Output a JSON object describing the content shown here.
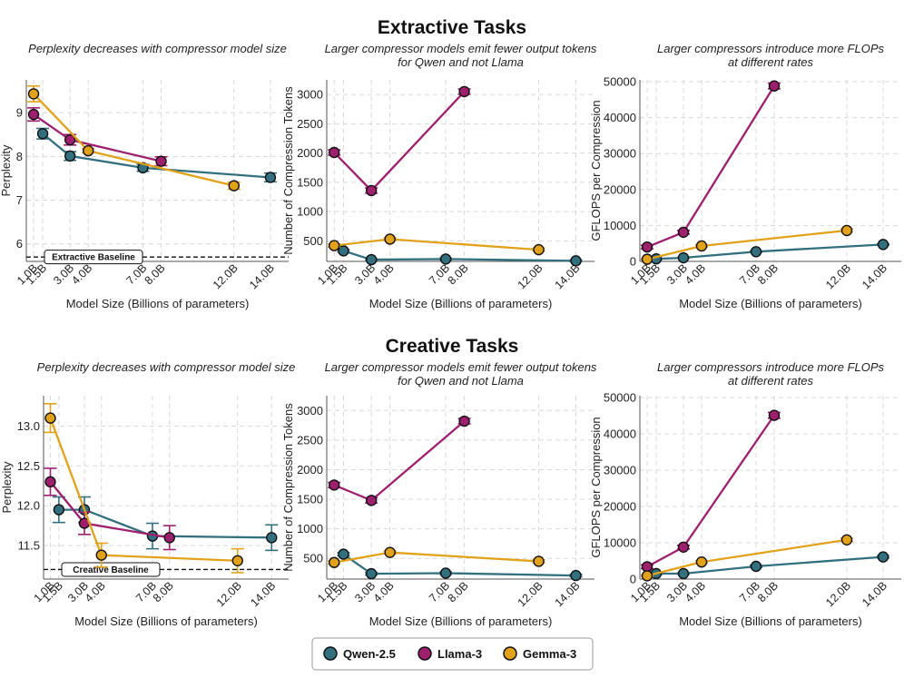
{
  "figure": {
    "sections": [
      {
        "title": "Extractive Tasks"
      },
      {
        "title": "Creative Tasks"
      }
    ],
    "legend": [
      {
        "name": "Qwen-2.5",
        "color": "#33707f"
      },
      {
        "name": "Llama-3",
        "color": "#9e1f6e"
      },
      {
        "name": "Gemma-3",
        "color": "#e1a21a"
      }
    ]
  },
  "chart_data": [
    {
      "type": "line",
      "section": "Extractive Tasks",
      "title": "Perplexity decreases with compressor model size",
      "xlabel": "Model Size (Billions of parameters)",
      "ylabel": "Perplexity",
      "xlim": [
        0.6,
        15.0
      ],
      "ylim": [
        5.6,
        9.75
      ],
      "xticks": [
        1.0,
        1.5,
        3.0,
        4.0,
        7.0,
        8.0,
        12.0,
        14.0
      ],
      "xtick_labels": [
        "1.0B",
        "1.5B",
        "3.0B",
        "4.0B",
        "7.0B",
        "8.0B",
        "12.0B",
        "14.0B"
      ],
      "yticks": [
        6,
        7,
        8,
        9
      ],
      "ytick_labels": [
        "6",
        "7",
        "8",
        "9"
      ],
      "baseline": {
        "label": "Extractive Baseline",
        "value": 5.7
      },
      "series": [
        {
          "name": "Qwen-2.5",
          "color": "#33707f",
          "x": [
            1.5,
            3.0,
            7.0,
            14.0
          ],
          "y": [
            8.52,
            8.01,
            7.74,
            7.52
          ],
          "err": [
            0.12,
            0.1,
            0.08,
            0.1
          ]
        },
        {
          "name": "Llama-3",
          "color": "#9e1f6e",
          "x": [
            1.0,
            3.0,
            8.0
          ],
          "y": [
            8.96,
            8.38,
            7.89
          ],
          "err": [
            0.15,
            0.12,
            0.1
          ]
        },
        {
          "name": "Gemma-3",
          "color": "#e1a21a",
          "x": [
            1.0,
            4.0,
            12.0
          ],
          "y": [
            9.43,
            8.13,
            7.33
          ],
          "err": [
            0.18,
            0.05,
            0.08
          ]
        }
      ]
    },
    {
      "type": "line",
      "section": "Extractive Tasks",
      "title": "Larger compressor models emit fewer output tokens for Qwen and not Llama",
      "title_lines": [
        "Larger compressor models emit fewer output tokens",
        "for Qwen and not Llama"
      ],
      "xlabel": "Model Size (Billions of parameters)",
      "ylabel": "Number of Compression Tokens",
      "xlim": [
        0.6,
        15.0
      ],
      "ylim": [
        150,
        3250
      ],
      "xticks": [
        1.0,
        1.5,
        3.0,
        4.0,
        7.0,
        8.0,
        12.0,
        14.0
      ],
      "xtick_labels": [
        "1.0B",
        "1.5B",
        "3.0B",
        "4.0B",
        "7.0B",
        "8.0B",
        "12.0B",
        "14.0B"
      ],
      "yticks": [
        500,
        1000,
        1500,
        2000,
        2500,
        3000
      ],
      "ytick_labels": [
        "500",
        "1000",
        "1500",
        "2000",
        "2500",
        "3000"
      ],
      "series": [
        {
          "name": "Qwen-2.5",
          "color": "#33707f",
          "x": [
            1.5,
            3.0,
            7.0,
            14.0
          ],
          "y": [
            330,
            180,
            190,
            160
          ],
          "err": [
            20,
            15,
            15,
            15
          ]
        },
        {
          "name": "Llama-3",
          "color": "#9e1f6e",
          "x": [
            1.0,
            3.0,
            8.0
          ],
          "y": [
            2010,
            1360,
            3050
          ],
          "err": [
            45,
            45,
            45
          ]
        },
        {
          "name": "Gemma-3",
          "color": "#e1a21a",
          "x": [
            1.0,
            4.0,
            12.0
          ],
          "y": [
            420,
            530,
            350
          ],
          "err": [
            25,
            25,
            25
          ]
        }
      ]
    },
    {
      "type": "line",
      "section": "Extractive Tasks",
      "title": "Larger compressors introduce more FLOPs at different rates",
      "title_lines": [
        "Larger compressors introduce more FLOPs",
        "at different rates"
      ],
      "xlabel": "Model Size (Billions of parameters)",
      "ylabel": "GFLOPS per Compression",
      "xlim": [
        0.6,
        15.0
      ],
      "ylim": [
        0,
        50500
      ],
      "xticks": [
        1.0,
        1.5,
        3.0,
        4.0,
        7.0,
        8.0,
        12.0,
        14.0
      ],
      "xtick_labels": [
        "1.0B",
        "1.5B",
        "3.0B",
        "4.0B",
        "7.0B",
        "8.0B",
        "12.0B",
        "14.0B"
      ],
      "yticks": [
        0,
        10000,
        20000,
        30000,
        40000,
        50000
      ],
      "ytick_labels": [
        "0",
        "10000",
        "20000",
        "30000",
        "40000",
        "50000"
      ],
      "series": [
        {
          "name": "Qwen-2.5",
          "color": "#33707f",
          "x": [
            1.5,
            3.0,
            7.0,
            14.0
          ],
          "y": [
            700,
            1000,
            2700,
            4700
          ],
          "err": [
            150,
            150,
            200,
            200
          ]
        },
        {
          "name": "Llama-3",
          "color": "#9e1f6e",
          "x": [
            1.0,
            3.0,
            8.0
          ],
          "y": [
            4000,
            8100,
            48800
          ],
          "err": [
            500,
            500,
            800
          ]
        },
        {
          "name": "Gemma-3",
          "color": "#e1a21a",
          "x": [
            1.0,
            4.0,
            12.0
          ],
          "y": [
            600,
            4300,
            8600
          ],
          "err": [
            150,
            300,
            400
          ]
        }
      ]
    },
    {
      "type": "line",
      "section": "Creative Tasks",
      "title": "Perplexity decreases with compressor model size",
      "xlabel": "Model Size (Billions of parameters)",
      "ylabel": "Perplexity",
      "xlim": [
        0.6,
        15.0
      ],
      "ylim": [
        11.08,
        13.38
      ],
      "xticks": [
        1.0,
        1.5,
        3.0,
        4.0,
        7.0,
        8.0,
        12.0,
        14.0
      ],
      "xtick_labels": [
        "1.0B",
        "1.5B",
        "3.0B",
        "4.0B",
        "7.0B",
        "8.0B",
        "12.0B",
        "14.0B"
      ],
      "yticks": [
        11.5,
        12.0,
        12.5,
        13.0
      ],
      "ytick_labels": [
        "11.5",
        "12.0",
        "12.5",
        "13.0"
      ],
      "baseline": {
        "label": "Creative Baseline",
        "value": 11.2
      },
      "series": [
        {
          "name": "Qwen-2.5",
          "color": "#33707f",
          "x": [
            1.5,
            3.0,
            7.0,
            14.0
          ],
          "y": [
            11.95,
            11.95,
            11.62,
            11.6
          ],
          "err": [
            0.16,
            0.16,
            0.16,
            0.16
          ]
        },
        {
          "name": "Llama-3",
          "color": "#9e1f6e",
          "x": [
            1.0,
            3.0,
            8.0
          ],
          "y": [
            12.3,
            11.78,
            11.6
          ],
          "err": [
            0.17,
            0.14,
            0.15
          ]
        },
        {
          "name": "Gemma-3",
          "color": "#e1a21a",
          "x": [
            1.0,
            4.0,
            12.0
          ],
          "y": [
            13.1,
            11.38,
            11.31
          ],
          "err": [
            0.18,
            0.15,
            0.15
          ]
        }
      ]
    },
    {
      "type": "line",
      "section": "Creative Tasks",
      "title": "Larger compressor models emit fewer output tokens for Qwen and not Llama",
      "title_lines": [
        "Larger compressor models emit fewer output tokens",
        "for Qwen and not Llama"
      ],
      "xlabel": "Model Size (Billions of parameters)",
      "ylabel": "Number of Compression Tokens",
      "xlim": [
        0.6,
        15.0
      ],
      "ylim": [
        150,
        3250
      ],
      "xticks": [
        1.0,
        1.5,
        3.0,
        4.0,
        7.0,
        8.0,
        12.0,
        14.0
      ],
      "xtick_labels": [
        "1.0B",
        "1.5B",
        "3.0B",
        "4.0B",
        "7.0B",
        "8.0B",
        "12.0B",
        "14.0B"
      ],
      "yticks": [
        500,
        1000,
        1500,
        2000,
        2500,
        3000
      ],
      "ytick_labels": [
        "500",
        "1000",
        "1500",
        "2000",
        "2500",
        "3000"
      ],
      "series": [
        {
          "name": "Qwen-2.5",
          "color": "#33707f",
          "x": [
            1.5,
            3.0,
            7.0,
            14.0
          ],
          "y": [
            570,
            240,
            250,
            210
          ],
          "err": [
            25,
            20,
            20,
            20
          ]
        },
        {
          "name": "Llama-3",
          "color": "#9e1f6e",
          "x": [
            1.0,
            3.0,
            8.0
          ],
          "y": [
            1740,
            1480,
            2820
          ],
          "err": [
            45,
            45,
            45
          ]
        },
        {
          "name": "Gemma-3",
          "color": "#e1a21a",
          "x": [
            1.0,
            4.0,
            12.0
          ],
          "y": [
            430,
            600,
            450
          ],
          "err": [
            25,
            25,
            25
          ]
        }
      ]
    },
    {
      "type": "line",
      "section": "Creative Tasks",
      "title": "Larger compressors introduce more FLOPs at different rates",
      "title_lines": [
        "Larger compressors introduce more FLOPs",
        "at different rates"
      ],
      "xlabel": "Model Size (Billions of parameters)",
      "ylabel": "GFLOPS per Compression",
      "xlim": [
        0.6,
        15.0
      ],
      "ylim": [
        0,
        50500
      ],
      "xticks": [
        1.0,
        1.5,
        3.0,
        4.0,
        7.0,
        8.0,
        12.0,
        14.0
      ],
      "xtick_labels": [
        "1.0B",
        "1.5B",
        "3.0B",
        "4.0B",
        "7.0B",
        "8.0B",
        "12.0B",
        "14.0B"
      ],
      "yticks": [
        0,
        10000,
        20000,
        30000,
        40000,
        50000
      ],
      "ytick_labels": [
        "0",
        "10000",
        "20000",
        "30000",
        "40000",
        "50000"
      ],
      "series": [
        {
          "name": "Qwen-2.5",
          "color": "#33707f",
          "x": [
            1.5,
            3.0,
            7.0,
            14.0
          ],
          "y": [
            1500,
            1500,
            3500,
            6100
          ],
          "err": [
            200,
            200,
            300,
            300
          ]
        },
        {
          "name": "Llama-3",
          "color": "#9e1f6e",
          "x": [
            1.0,
            3.0,
            8.0
          ],
          "y": [
            3400,
            8800,
            45100
          ],
          "err": [
            500,
            500,
            800
          ]
        },
        {
          "name": "Gemma-3",
          "color": "#e1a21a",
          "x": [
            1.0,
            4.0,
            12.0
          ],
          "y": [
            900,
            4700,
            10800
          ],
          "err": [
            150,
            300,
            400
          ]
        }
      ]
    }
  ]
}
